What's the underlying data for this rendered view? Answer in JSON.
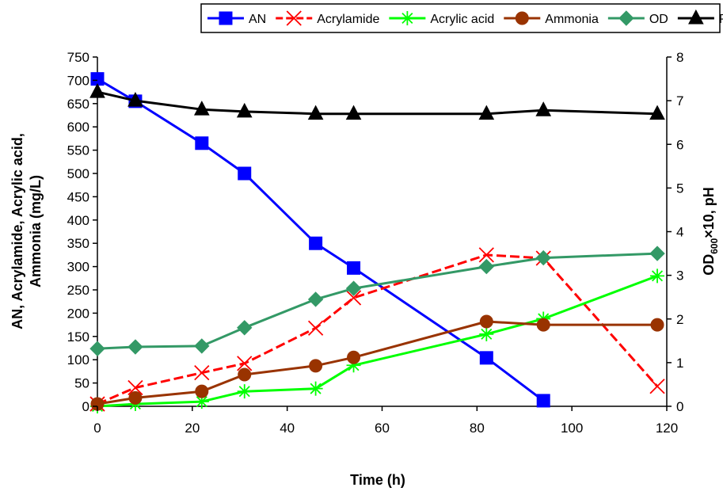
{
  "chart_data": {
    "type": "line",
    "xlabel": "Time (h)",
    "ylabel_lines": [
      "AN, Acrylamide, Acrylic acid,",
      "Ammonia (mg/L)"
    ],
    "y2label_main": "OD",
    "y2label_sub": "600",
    "y2label_rest": "×10, pH",
    "xlim": [
      0,
      120
    ],
    "ylim": [
      0,
      750
    ],
    "y2lim": [
      0,
      8
    ],
    "x_ticks": [
      0,
      20,
      40,
      60,
      80,
      100,
      120
    ],
    "y_ticks": [
      0,
      50,
      100,
      150,
      200,
      250,
      300,
      350,
      400,
      450,
      500,
      550,
      600,
      650,
      700,
      750
    ],
    "y2_ticks": [
      0,
      1,
      2,
      3,
      4,
      5,
      6,
      7,
      8
    ],
    "grid": false,
    "legend_position": "top",
    "series": [
      {
        "name": "AN",
        "axis": "left",
        "color": "#0000ff",
        "marker": "square",
        "x": [
          0,
          8,
          22,
          31,
          46,
          54,
          82,
          94
        ],
        "y": [
          703,
          655,
          565,
          500,
          350,
          297,
          104,
          12
        ]
      },
      {
        "name": "Acrylamide",
        "axis": "left",
        "color": "#ff0000",
        "marker": "x",
        "dashed": true,
        "x": [
          0,
          8,
          22,
          31,
          46,
          54,
          82,
          94,
          118
        ],
        "y": [
          5,
          40,
          72,
          92,
          168,
          233,
          325,
          318,
          43
        ]
      },
      {
        "name": "Acrylic acid",
        "axis": "left",
        "color": "#00ff00",
        "marker": "star",
        "x": [
          0,
          8,
          22,
          31,
          46,
          54,
          82,
          94,
          118
        ],
        "y": [
          0,
          5,
          10,
          32,
          38,
          88,
          155,
          188,
          280
        ]
      },
      {
        "name": "Ammonia",
        "axis": "left",
        "color": "#993300",
        "marker": "circle",
        "x": [
          0,
          8,
          22,
          31,
          46,
          54,
          82,
          94,
          118
        ],
        "y": [
          5,
          18,
          32,
          68,
          87,
          105,
          182,
          175,
          175
        ]
      },
      {
        "name": "OD",
        "axis": "right",
        "color": "#339966",
        "marker": "diamond",
        "x": [
          0,
          8,
          22,
          31,
          46,
          54,
          82,
          94,
          118
        ],
        "y": [
          1.32,
          1.36,
          1.38,
          1.8,
          2.45,
          2.7,
          3.2,
          3.4,
          3.5
        ]
      },
      {
        "name": "PH",
        "axis": "right",
        "color": "#000000",
        "marker": "triangle",
        "x": [
          0,
          8,
          22,
          31,
          46,
          54,
          82,
          94,
          118
        ],
        "y": [
          7.2,
          7.0,
          6.8,
          6.75,
          6.7,
          6.7,
          6.7,
          6.78,
          6.7
        ]
      }
    ]
  }
}
